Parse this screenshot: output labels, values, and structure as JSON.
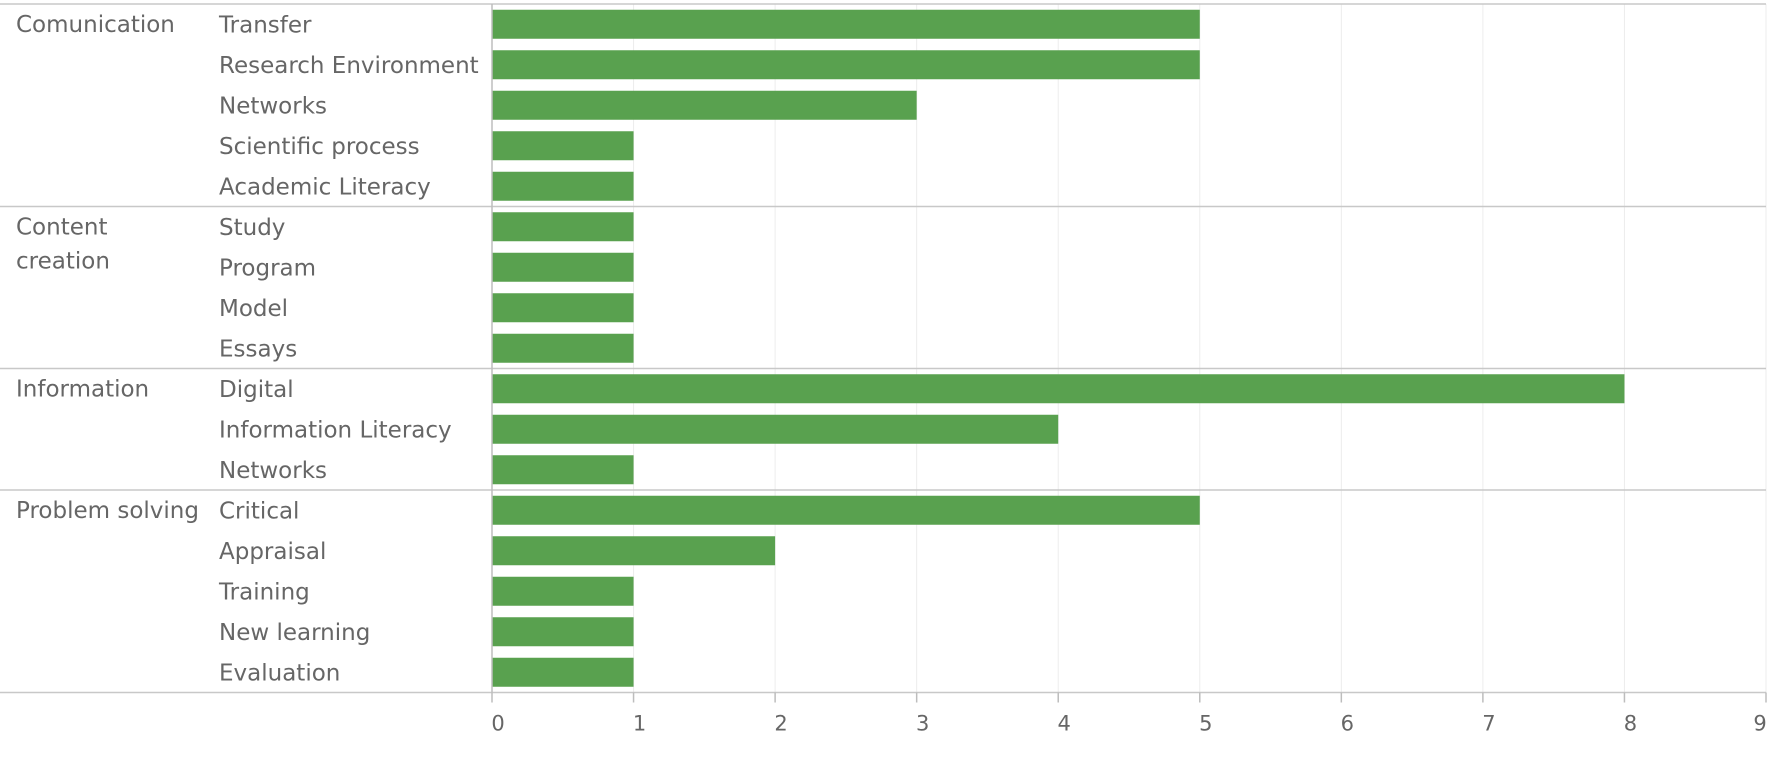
{
  "chart_data": {
    "type": "bar",
    "orientation": "horizontal",
    "bar_color": "#59A14F",
    "xlim": [
      0,
      9
    ],
    "x_ticks": [
      0,
      1,
      2,
      3,
      4,
      5,
      6,
      7,
      8,
      9
    ],
    "grid": true,
    "groups": [
      {
        "name": "Comunication",
        "rows": [
          {
            "label": "Transfer",
            "value": 5
          },
          {
            "label": "Research Environment",
            "value": 5
          },
          {
            "label": "Networks",
            "value": 3
          },
          {
            "label": "Scientific process",
            "value": 1
          },
          {
            "label": "Academic Literacy",
            "value": 1
          }
        ]
      },
      {
        "name": "Content\ncreation",
        "rows": [
          {
            "label": "Study",
            "value": 1
          },
          {
            "label": "Program",
            "value": 1
          },
          {
            "label": "Model",
            "value": 1
          },
          {
            "label": "Essays",
            "value": 1
          }
        ]
      },
      {
        "name": "Information",
        "rows": [
          {
            "label": "Digital",
            "value": 8
          },
          {
            "label": "Information Literacy",
            "value": 4
          },
          {
            "label": "Networks",
            "value": 1
          }
        ]
      },
      {
        "name": "Problem solving",
        "rows": [
          {
            "label": "Critical",
            "value": 5
          },
          {
            "label": "Appraisal",
            "value": 2
          },
          {
            "label": "Training",
            "value": 1
          },
          {
            "label": "New learning",
            "value": 1
          },
          {
            "label": "Evaluation",
            "value": 1
          }
        ]
      }
    ]
  }
}
